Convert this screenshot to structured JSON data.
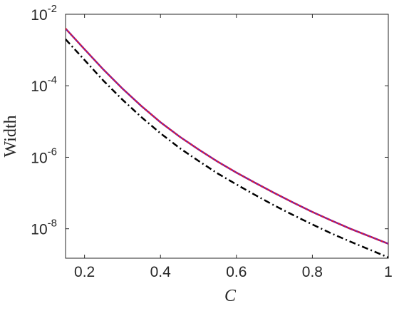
{
  "chart_data": {
    "type": "line",
    "x_label": "C",
    "y_label": "Width",
    "x": [
      0.15,
      0.2,
      0.25,
      0.3,
      0.35,
      0.4,
      0.45,
      0.5,
      0.55,
      0.6,
      0.65,
      0.7,
      0.75,
      0.8,
      0.85,
      0.9,
      0.95,
      1.0
    ],
    "series": [
      {
        "color": "#7e1e9c",
        "style": "solid",
        "values": [
          0.00398,
          0.00105,
          0.000282,
          8.32e-05,
          2.69e-05,
          9.55e-06,
          3.8e-06,
          1.66e-06,
          7.59e-07,
          3.72e-07,
          1.91e-07,
          1e-07,
          5.37e-08,
          2.95e-08,
          1.7e-08,
          1e-08,
          6.17e-09,
          3.8e-09
        ]
      },
      {
        "color": "#e8202a",
        "style": "dotted",
        "values": [
          0.00398,
          0.00105,
          0.000282,
          8.32e-05,
          2.69e-05,
          9.55e-06,
          3.8e-06,
          1.66e-06,
          7.59e-07,
          3.72e-07,
          1.91e-07,
          1e-07,
          5.37e-08,
          2.95e-08,
          1.7e-08,
          1e-08,
          6.17e-09,
          3.8e-09
        ]
      },
      {
        "color": "#000000",
        "style": "dashdot",
        "values": [
          0.002,
          0.000525,
          0.000138,
          4.07e-05,
          1.32e-05,
          4.68e-06,
          1.82e-06,
          7.94e-07,
          3.55e-07,
          1.74e-07,
          8.71e-08,
          4.47e-08,
          2.4e-08,
          1.32e-08,
          7.41e-09,
          4.37e-09,
          2.63e-09,
          1.58e-09
        ]
      }
    ],
    "xlim": [
      0.15,
      1
    ],
    "xticks": [
      0.2,
      0.4,
      0.6,
      0.8,
      1
    ],
    "ylim": [
      1.5e-09,
      0.01
    ],
    "y_scale": "log",
    "yticks": [
      {
        "value": 0.01,
        "label": "10",
        "exponent": "-2"
      },
      {
        "value": 0.0001,
        "label": "10",
        "exponent": "-4"
      },
      {
        "value": 1e-06,
        "label": "10",
        "exponent": "-6"
      },
      {
        "value": 1e-08,
        "label": "10",
        "exponent": "-8"
      }
    ],
    "grid": false
  }
}
